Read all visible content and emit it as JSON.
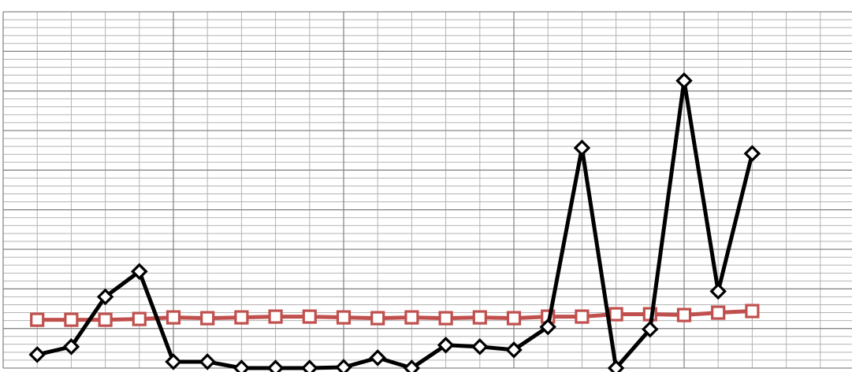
{
  "chart_data": {
    "type": "line",
    "title": "",
    "xlabel": "",
    "ylabel": "",
    "x": [
      1,
      2,
      3,
      4,
      5,
      6,
      7,
      8,
      9,
      10,
      11,
      12,
      13,
      14,
      15,
      16,
      17,
      18,
      19,
      20,
      21,
      22,
      23
    ],
    "xlim": [
      0,
      25
    ],
    "ylim": [
      0,
      45
    ],
    "grid": true,
    "colors": {
      "series_black": "#000000",
      "series_red": "#c0504d",
      "grid_major": "#888888",
      "grid_minor": "#b3b3b3",
      "marker_fill": "#ffffff"
    },
    "series": [
      {
        "marker": "diamond",
        "color": "#000000",
        "values": [
          1.7,
          2.7,
          9.0,
          12.2,
          0.8,
          0.8,
          0.0,
          0.0,
          0.0,
          0.1,
          1.3,
          0.0,
          2.9,
          2.7,
          2.3,
          5.2,
          27.8,
          0.0,
          4.9,
          36.3,
          9.7,
          27.1,
          null
        ]
      },
      {
        "marker": "square",
        "color": "#c0504d",
        "values": [
          6.1,
          6.1,
          6.1,
          6.2,
          6.4,
          6.3,
          6.4,
          6.5,
          6.5,
          6.4,
          6.3,
          6.4,
          6.3,
          6.4,
          6.3,
          6.5,
          6.5,
          6.8,
          6.8,
          6.7,
          7.0,
          7.2,
          null
        ]
      }
    ]
  }
}
